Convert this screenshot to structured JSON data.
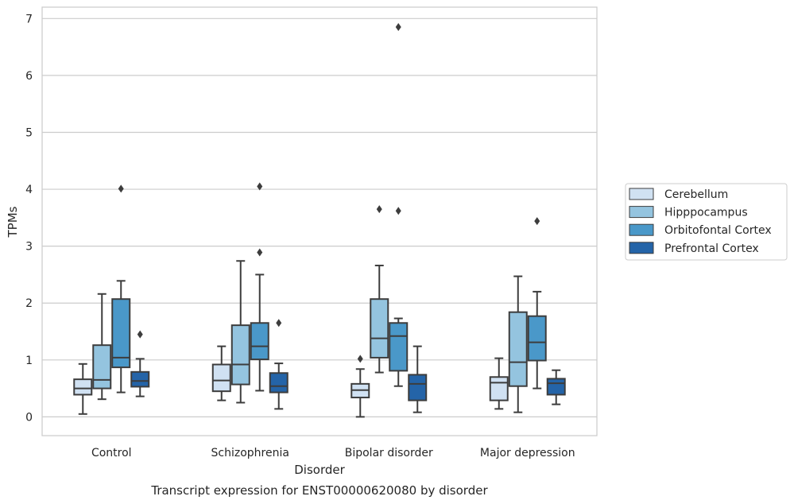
{
  "chart_data": {
    "type": "box",
    "title": "",
    "caption": "Transcript expression for ENST00000620080 by disorder",
    "xlabel": "Disorder",
    "ylabel": "TPMs",
    "ylim": [
      -0.33,
      7.2
    ],
    "yticks": [
      0,
      1,
      2,
      3,
      4,
      5,
      6,
      7
    ],
    "categories": [
      "Control",
      "Schizophrenia",
      "Bipolar disorder",
      "Major depression"
    ],
    "grid": "horizontal",
    "legend_position": "right",
    "series": [
      {
        "name": "Cerebellum",
        "color": "#d0e1f2",
        "boxes": [
          {
            "whisker_low": 0.05,
            "q1": 0.39,
            "median": 0.5,
            "q3": 0.66,
            "whisker_high": 0.93,
            "outliers": []
          },
          {
            "whisker_low": 0.29,
            "q1": 0.45,
            "median": 0.64,
            "q3": 0.92,
            "whisker_high": 1.24,
            "outliers": []
          },
          {
            "whisker_low": 0.0,
            "q1": 0.34,
            "median": 0.47,
            "q3": 0.58,
            "whisker_high": 0.84,
            "outliers": [
              1.02
            ]
          },
          {
            "whisker_low": 0.14,
            "q1": 0.29,
            "median": 0.6,
            "q3": 0.7,
            "whisker_high": 1.03,
            "outliers": []
          }
        ]
      },
      {
        "name": "Hipppocampus",
        "color": "#94c4df",
        "boxes": [
          {
            "whisker_low": 0.31,
            "q1": 0.5,
            "median": 0.65,
            "q3": 1.26,
            "whisker_high": 2.16,
            "outliers": []
          },
          {
            "whisker_low": 0.25,
            "q1": 0.57,
            "median": 0.92,
            "q3": 1.61,
            "whisker_high": 2.74,
            "outliers": []
          },
          {
            "whisker_low": 0.78,
            "q1": 1.04,
            "median": 1.38,
            "q3": 2.07,
            "whisker_high": 2.66,
            "outliers": [
              3.65
            ]
          },
          {
            "whisker_low": 0.08,
            "q1": 0.54,
            "median": 0.96,
            "q3": 1.84,
            "whisker_high": 2.47,
            "outliers": []
          }
        ]
      },
      {
        "name": "Orbitofontal Cortex",
        "color": "#4a98c9",
        "boxes": [
          {
            "whisker_low": 0.43,
            "q1": 0.87,
            "median": 1.04,
            "q3": 2.07,
            "whisker_high": 2.39,
            "outliers": [
              4.01
            ]
          },
          {
            "whisker_low": 0.46,
            "q1": 1.01,
            "median": 1.24,
            "q3": 1.65,
            "whisker_high": 2.5,
            "outliers": [
              2.89,
              4.05
            ]
          },
          {
            "whisker_low": 0.54,
            "q1": 0.81,
            "median": 1.42,
            "q3": 1.65,
            "whisker_high": 1.73,
            "outliers": [
              3.62,
              6.85
            ]
          },
          {
            "whisker_low": 0.5,
            "q1": 0.99,
            "median": 1.31,
            "q3": 1.77,
            "whisker_high": 2.2,
            "outliers": [
              3.44
            ]
          }
        ]
      },
      {
        "name": "Prefrontal Cortex",
        "color": "#2464a8",
        "boxes": [
          {
            "whisker_low": 0.36,
            "q1": 0.53,
            "median": 0.63,
            "q3": 0.79,
            "whisker_high": 1.02,
            "outliers": [
              1.45
            ]
          },
          {
            "whisker_low": 0.14,
            "q1": 0.43,
            "median": 0.54,
            "q3": 0.77,
            "whisker_high": 0.94,
            "outliers": [
              1.65
            ]
          },
          {
            "whisker_low": 0.08,
            "q1": 0.29,
            "median": 0.58,
            "q3": 0.74,
            "whisker_high": 1.24,
            "outliers": []
          },
          {
            "whisker_low": 0.22,
            "q1": 0.39,
            "median": 0.59,
            "q3": 0.67,
            "whisker_high": 0.82,
            "outliers": []
          }
        ]
      }
    ]
  }
}
